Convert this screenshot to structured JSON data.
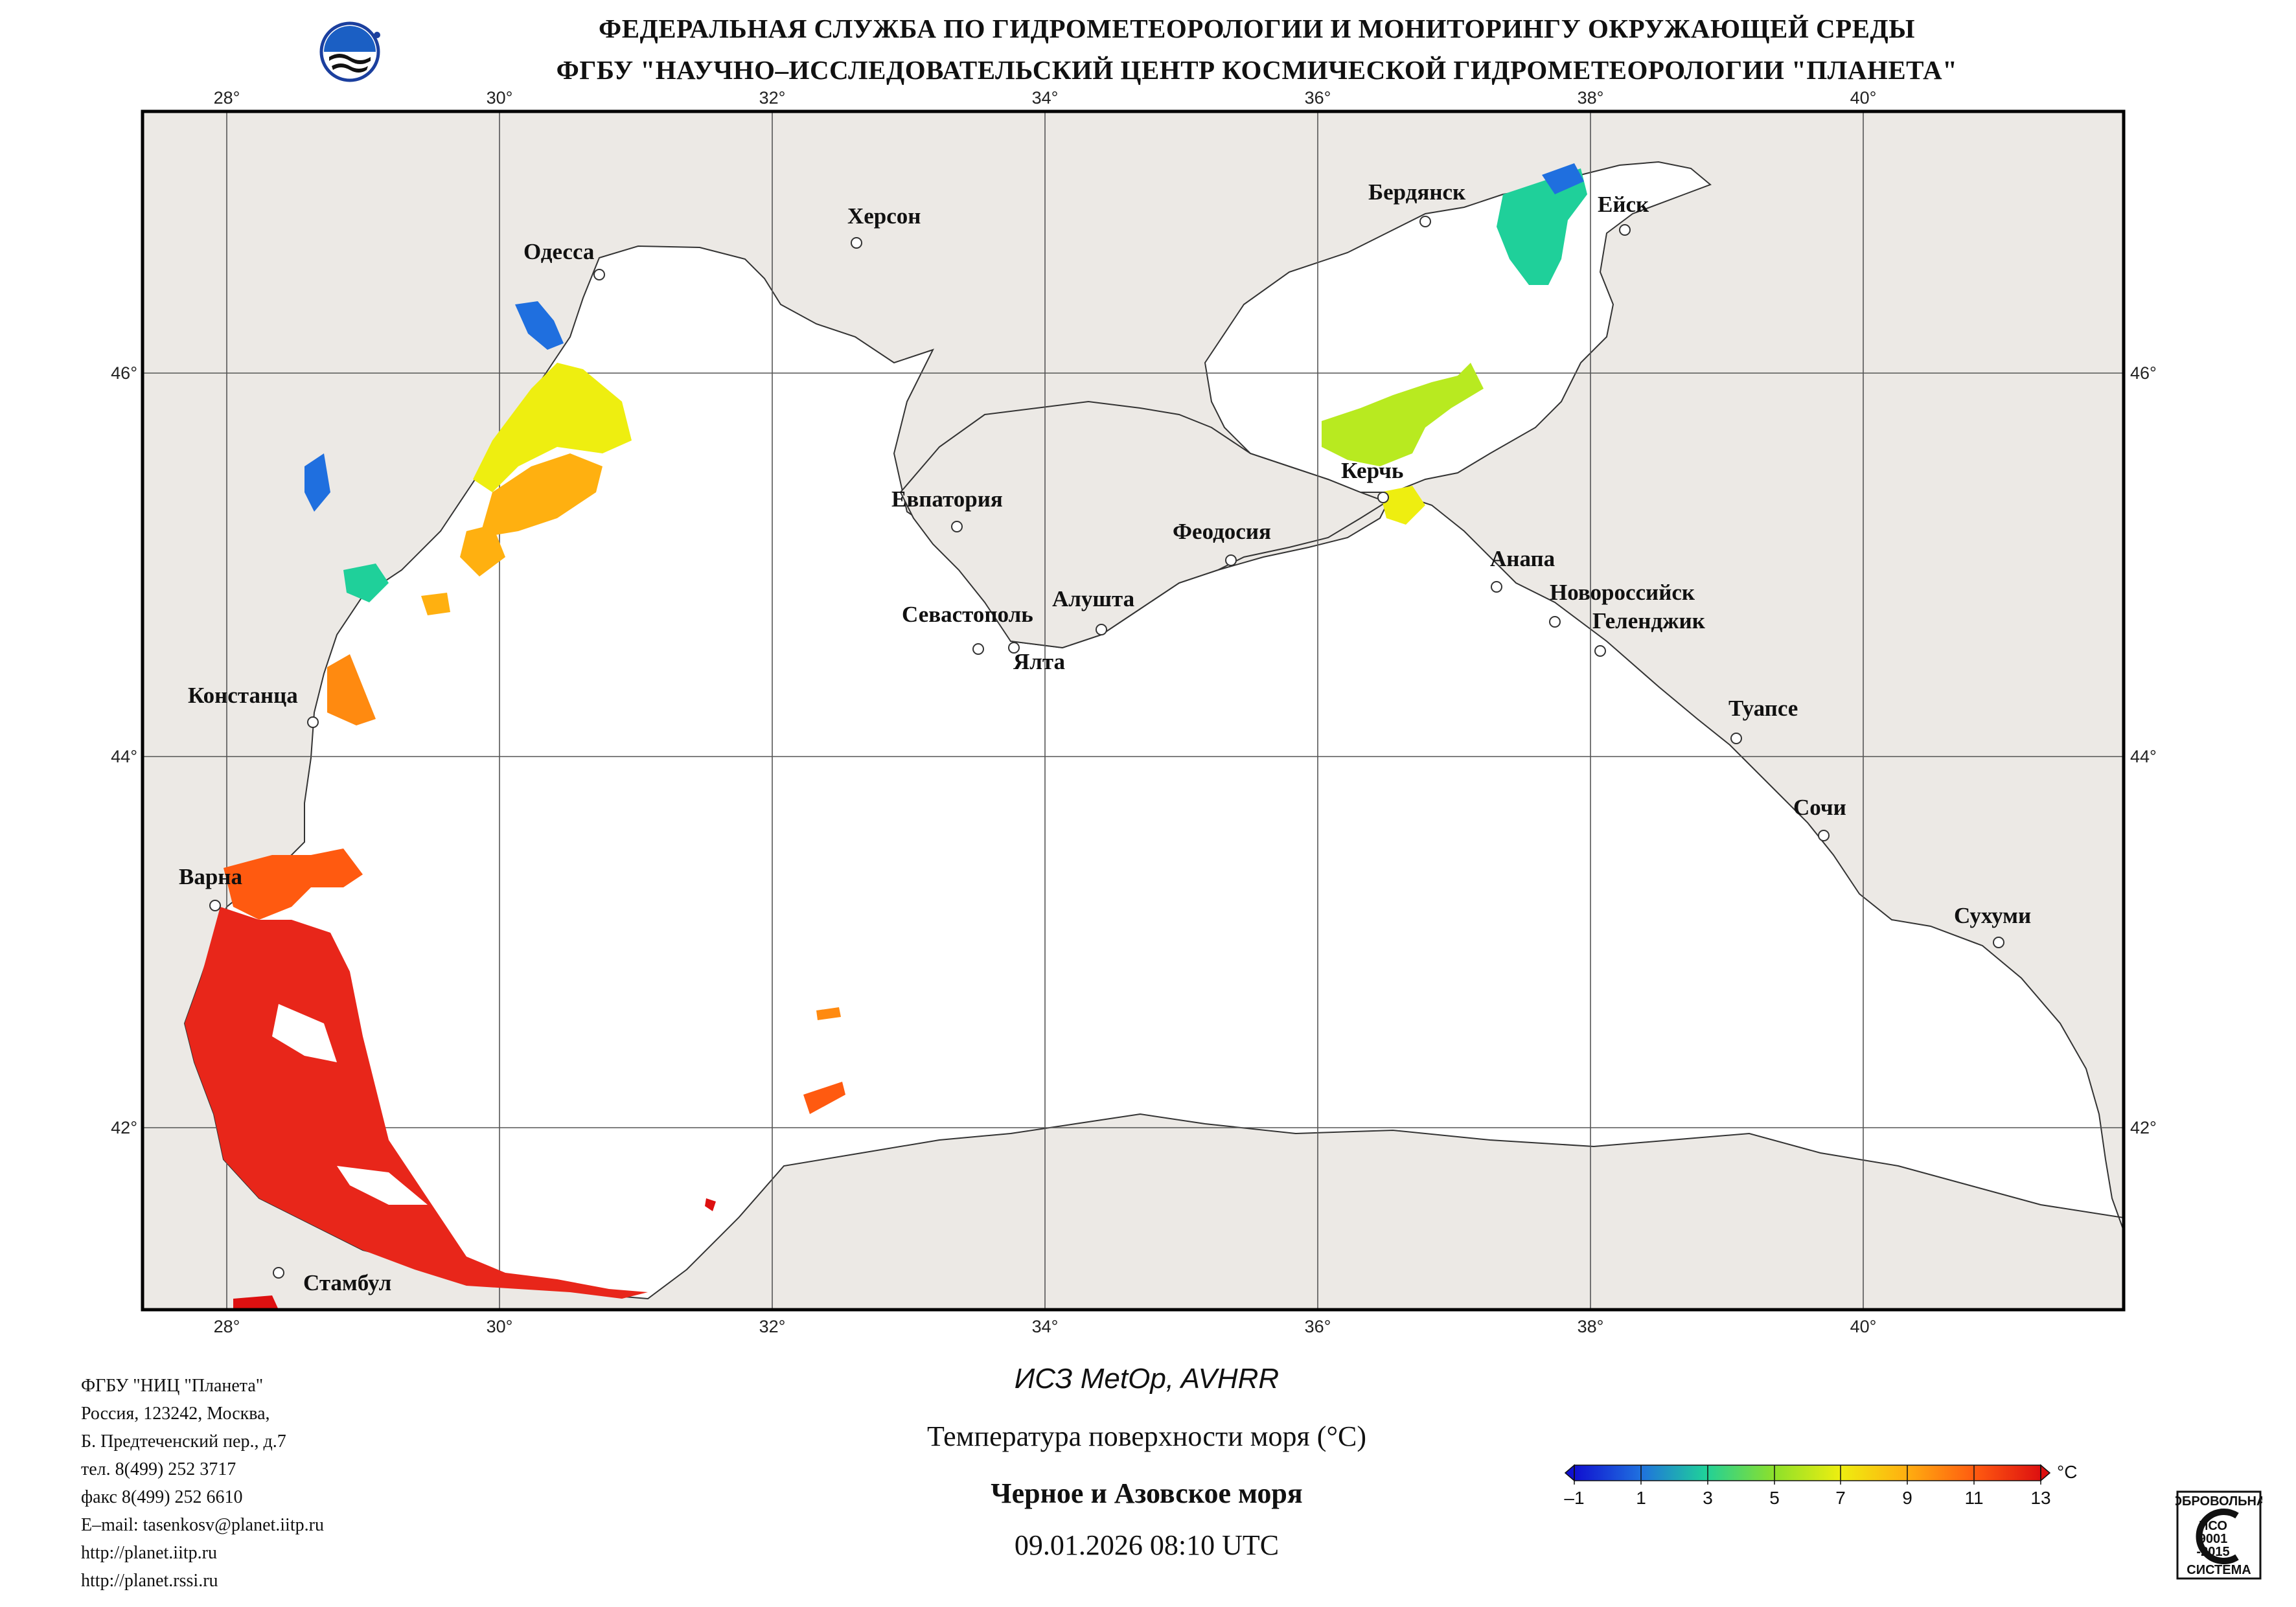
{
  "header": {
    "line1": "ФЕДЕРАЛЬНАЯ СЛУЖБА ПО ГИДРОМЕТЕОРОЛОГИИ И МОНИТОРИНГУ ОКРУЖАЮЩЕЙ СРЕДЫ",
    "line2": "ФГБУ \"НАУЧНО–ИССЛЕДОВАТЕЛЬСКИЙ ЦЕНТР КОСМИЧЕСКОЙ ГИДРОМЕТЕОРОЛОГИИ \"ПЛАНЕТА\""
  },
  "map": {
    "longitude_labels": [
      "28°",
      "30°",
      "32°",
      "34°",
      "36°",
      "38°",
      "40°"
    ],
    "latitude_labels": [
      "46°",
      "44°",
      "42°"
    ],
    "land_color": "#ece9e5",
    "sea_color": "#ffffff",
    "cities": [
      {
        "name": "Одесса"
      },
      {
        "name": "Херсон"
      },
      {
        "name": "Бердянск"
      },
      {
        "name": "Ейск"
      },
      {
        "name": "Евпатория"
      },
      {
        "name": "Керчь"
      },
      {
        "name": "Феодосия"
      },
      {
        "name": "Анапа"
      },
      {
        "name": "Новороссийск"
      },
      {
        "name": "Геленджик"
      },
      {
        "name": "Алушта"
      },
      {
        "name": "Севастополь"
      },
      {
        "name": "Ялта"
      },
      {
        "name": "Констанца"
      },
      {
        "name": "Туапсе"
      },
      {
        "name": "Сочи"
      },
      {
        "name": "Варна"
      },
      {
        "name": "Сухуми"
      },
      {
        "name": "Стамбул"
      }
    ]
  },
  "info": {
    "org": "ФГБУ \"НИЦ \"Планета\"",
    "addr1": "Россия, 123242, Москва,",
    "addr2": "Б. Предтеченский пер., д.7",
    "tel": "тел. 8(499) 252 3717",
    "fax": "факс 8(499) 252 6610",
    "email": "E–mail: tasenkosv@planet.iitp.ru",
    "url1": "http://planet.iitp.ru",
    "url2": "http://planet.rssi.ru"
  },
  "caption": {
    "satellite": "ИСЗ MetOp, AVHRR",
    "parameter": "Температура поверхности моря (°C)",
    "region": "Черное и Азовское моря",
    "datetime": "09.01.2026 08:10 UTC"
  },
  "colorbar": {
    "unit": "°C",
    "ticks": [
      "–1",
      "1",
      "3",
      "5",
      "7",
      "9",
      "11",
      "13"
    ],
    "colors": [
      "#1010d0",
      "#1f6fdf",
      "#1fd09a",
      "#8ee02a",
      "#eeee10",
      "#ffb010",
      "#ff5a10",
      "#dd1010"
    ]
  },
  "certificate": {
    "top_text": "ДОБРОВОЛЬНАЯ",
    "mark1": "ИСО",
    "mark2": "9001",
    "mark3": "-2015",
    "bottom_text": "СИСТЕМА"
  }
}
